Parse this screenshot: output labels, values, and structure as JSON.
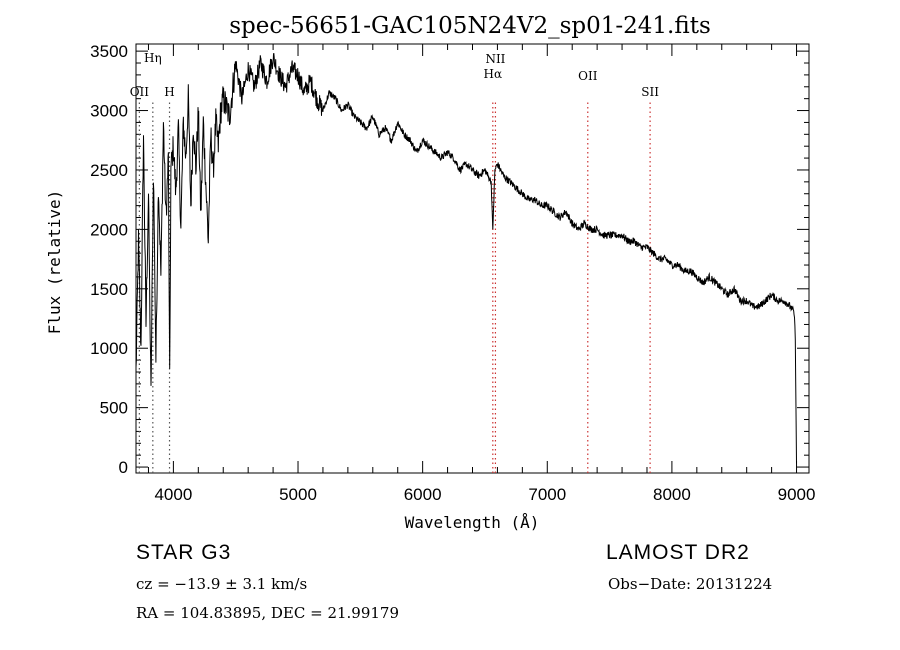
{
  "chart_data": {
    "type": "line",
    "title": "spec-56651-GAC105N24V2_sp01-241.fits",
    "xlabel": "Wavelength (Å)",
    "ylabel": "Flux (relative)",
    "xlim": [
      3700,
      9100
    ],
    "ylim": [
      -50,
      3560
    ],
    "x_ticks": [
      4000,
      5000,
      6000,
      7000,
      8000,
      9000
    ],
    "y_ticks": [
      0,
      500,
      1000,
      1500,
      2000,
      2500,
      3000,
      3500
    ],
    "grid": false,
    "series": [
      {
        "x": [
          3700,
          3720,
          3740,
          3760,
          3780,
          3800,
          3820,
          3840,
          3860,
          3880,
          3900,
          3920,
          3940,
          3960,
          3970,
          3980,
          4000,
          4020,
          4040,
          4060,
          4080,
          4100,
          4120,
          4140,
          4160,
          4180,
          4200,
          4220,
          4240,
          4260,
          4280,
          4300,
          4320,
          4340,
          4360,
          4380,
          4400,
          4450,
          4500,
          4550,
          4600,
          4650,
          4700,
          4750,
          4800,
          4850,
          4900,
          4950,
          5000,
          5050,
          5100,
          5150,
          5200,
          5250,
          5300,
          5350,
          5400,
          5450,
          5500,
          5550,
          5600,
          5650,
          5700,
          5750,
          5800,
          5850,
          5900,
          5950,
          6000,
          6050,
          6100,
          6150,
          6200,
          6250,
          6300,
          6350,
          6400,
          6450,
          6500,
          6550,
          6563,
          6580,
          6600,
          6650,
          6700,
          6750,
          6800,
          6850,
          6900,
          6950,
          7000,
          7050,
          7100,
          7150,
          7200,
          7250,
          7300,
          7350,
          7400,
          7450,
          7500,
          7550,
          7600,
          7650,
          7700,
          7750,
          7800,
          7850,
          7900,
          7950,
          8000,
          8050,
          8100,
          8150,
          8200,
          8250,
          8300,
          8350,
          8400,
          8450,
          8500,
          8550,
          8600,
          8650,
          8700,
          8750,
          8800,
          8850,
          8900,
          8950,
          8980,
          8990,
          9000
        ],
        "y": [
          800,
          1900,
          1000,
          2800,
          1200,
          2300,
          600,
          2500,
          900,
          2400,
          1600,
          2900,
          2100,
          2600,
          700,
          2500,
          2700,
          2300,
          2850,
          2000,
          2900,
          2600,
          3100,
          2200,
          2900,
          2500,
          3000,
          2100,
          2900,
          2400,
          1900,
          2800,
          2500,
          2900,
          2700,
          3000,
          3100,
          2950,
          3400,
          3100,
          3350,
          3200,
          3400,
          3250,
          3450,
          3300,
          3200,
          3350,
          3300,
          3150,
          3250,
          3100,
          3000,
          3150,
          3100,
          3000,
          3050,
          2950,
          2900,
          2850,
          2950,
          2800,
          2850,
          2750,
          2900,
          2800,
          2750,
          2650,
          2750,
          2700,
          2650,
          2600,
          2650,
          2600,
          2500,
          2550,
          2500,
          2450,
          2500,
          2400,
          2000,
          2500,
          2550,
          2450,
          2400,
          2350,
          2300,
          2250,
          2250,
          2200,
          2200,
          2150,
          2100,
          2150,
          2050,
          2000,
          2050,
          2000,
          2000,
          1950,
          1950,
          1950,
          1950,
          1900,
          1900,
          1850,
          1850,
          1800,
          1750,
          1750,
          1700,
          1700,
          1650,
          1650,
          1600,
          1550,
          1600,
          1550,
          1500,
          1450,
          1500,
          1400,
          1400,
          1350,
          1350,
          1400,
          1450,
          1400,
          1400,
          1350,
          1300,
          1100,
          30
        ]
      }
    ],
    "lines": [
      {
        "label": "Hη",
        "wave": 3835
      },
      {
        "label": "OII",
        "wave": 3727
      },
      {
        "label": "H",
        "wave": 3969
      },
      {
        "label": "NII",
        "wave": 6584
      },
      {
        "label": "Hα",
        "wave": 6563
      },
      {
        "label": "OII",
        "wave": 7325
      },
      {
        "label": "SII",
        "wave": 7825
      }
    ]
  },
  "info": {
    "class_text": "STAR    G3",
    "survey_text": "LAMOST DR2",
    "cz_text": "cz = −13.9 ± 3.1 km/s",
    "obsdate_text": "Obs−Date: 20131224",
    "radec_text": "RA = 104.83895, DEC =  21.99179"
  },
  "colors": {
    "spectrum": "#000000",
    "line_marker": "#cc3333",
    "line_marker_grey": "#555555"
  }
}
